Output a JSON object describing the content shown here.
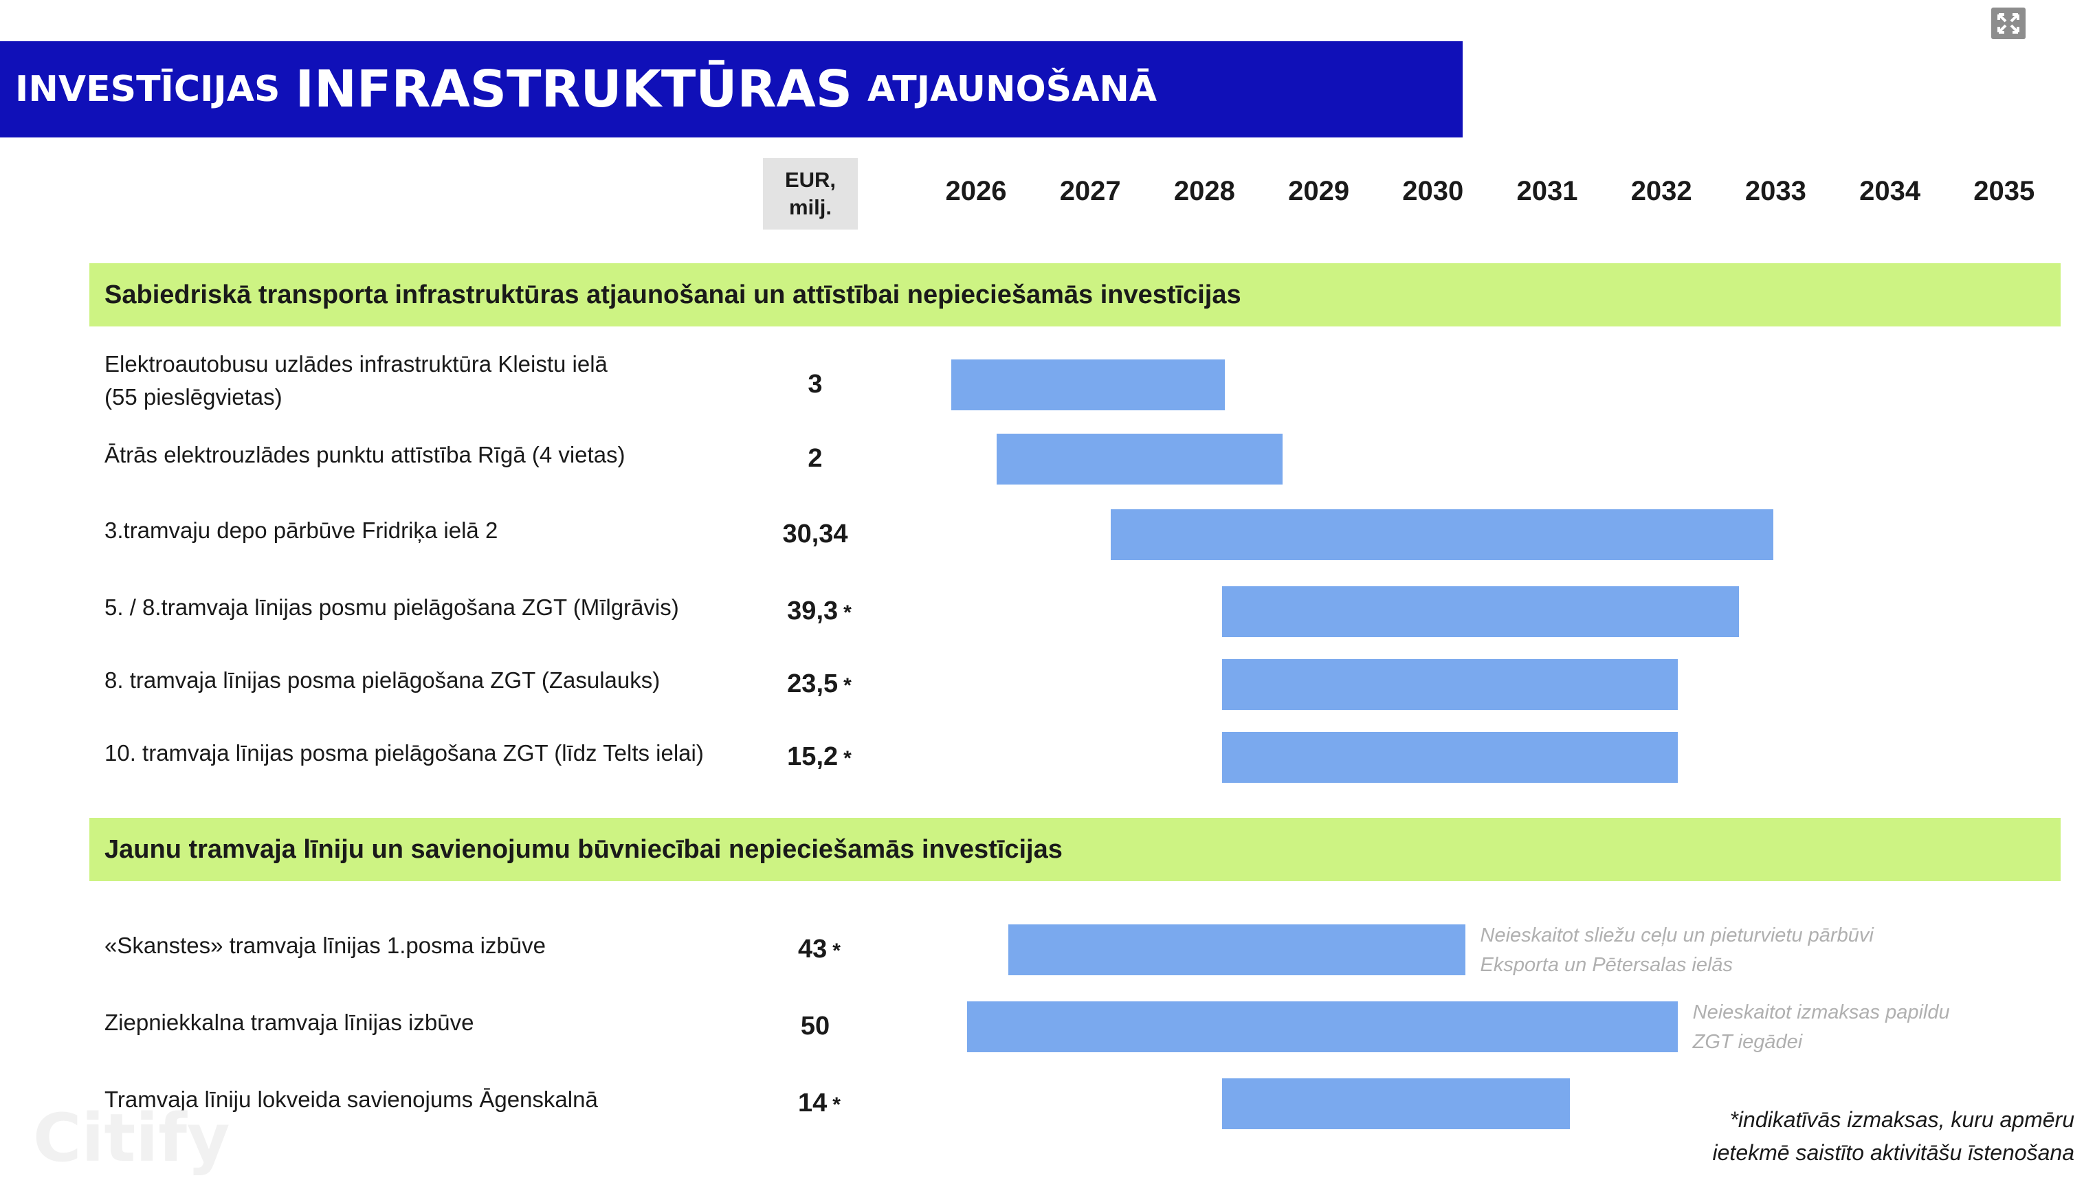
{
  "title": {
    "part1": "INVESTĪCIJAS",
    "part2": "INFRASTRUKTŪRAS",
    "part3": "ATJAUNOŠANĀ"
  },
  "window_icon": "expand-icon",
  "watermark": "Citify",
  "chart_data": {
    "type": "gantt",
    "value_header": "EUR, milj.",
    "years": [
      "2026",
      "2027",
      "2028",
      "2029",
      "2030",
      "2031",
      "2032",
      "2033",
      "2034",
      "2035"
    ],
    "bar_color": "#7aa9ee",
    "sections": [
      {
        "title": "Sabiedriskā transporta infrastruktūras atjaunošanai un attīstībai nepieciešamās investīcijas",
        "rows": [
          {
            "label_lines": [
              "Elektroautobusu uzlādes infrastruktūra Kleistu ielā",
              "(55 pieslēgvietas)"
            ],
            "value": "3",
            "asterisk": "",
            "start": 2026.1,
            "end": 2028.5,
            "note_lines": []
          },
          {
            "label_lines": [
              "Ātrās elektrouzlādes punktu attīstība Rīgā (4 vietas)"
            ],
            "value": "2",
            "asterisk": "",
            "start": 2026.5,
            "end": 2029.0,
            "note_lines": []
          },
          {
            "label_lines": [
              "3.tramvaju depo pārbūve Fridriķa ielā 2"
            ],
            "value": "30,34",
            "asterisk": "",
            "start": 2027.5,
            "end": 2033.3,
            "note_lines": []
          },
          {
            "label_lines": [
              "5. / 8.tramvaja līnijas posmu pielāgošana ZGT (Mīlgrāvis)"
            ],
            "value": "39,3",
            "asterisk": "*",
            "start": 2028.47,
            "end": 2033.0,
            "note_lines": []
          },
          {
            "label_lines": [
              "8. tramvaja līnijas posma pielāgošana ZGT (Zasulauks)"
            ],
            "value": "23,5",
            "asterisk": "*",
            "start": 2028.47,
            "end": 2032.46,
            "note_lines": []
          },
          {
            "label_lines": [
              "10. tramvaja līnijas posma pielāgošana ZGT (līdz Telts ielai)"
            ],
            "value": "15,2",
            "asterisk": "*",
            "start": 2028.47,
            "end": 2032.46,
            "note_lines": []
          }
        ]
      },
      {
        "title": "Jaunu tramvaja līniju un savienojumu būvniecībai nepieciešamās investīcijas",
        "rows": [
          {
            "label_lines": [
              "«Skanstes» tramvaja līnijas 1.posma izbūve"
            ],
            "value": "43",
            "asterisk": "*",
            "start": 2026.6,
            "end": 2030.6,
            "note_lines": [
              "Neieskaitot sliežu ceļu un pieturvietu pārbūvi",
              "Eksporta un Pētersalas ielās"
            ]
          },
          {
            "label_lines": [
              "Ziepniekkalna tramvaja līnijas izbūve"
            ],
            "value": "50",
            "asterisk": "",
            "start": 2026.24,
            "end": 2032.46,
            "note_lines": [
              "Neieskaitot izmaksas papildu",
              "ZGT iegādei"
            ]
          },
          {
            "label_lines": [
              "Tramvaja līniju lokveida savienojums Āgenskalnā"
            ],
            "value": "14",
            "asterisk": "*",
            "start": 2028.47,
            "end": 2031.52,
            "note_lines": []
          }
        ]
      }
    ],
    "footnote_lines": [
      "*indikatīvās izmaksas, kuru apmēru",
      "ietekmē saistīto aktivitāšu īstenošana"
    ]
  }
}
